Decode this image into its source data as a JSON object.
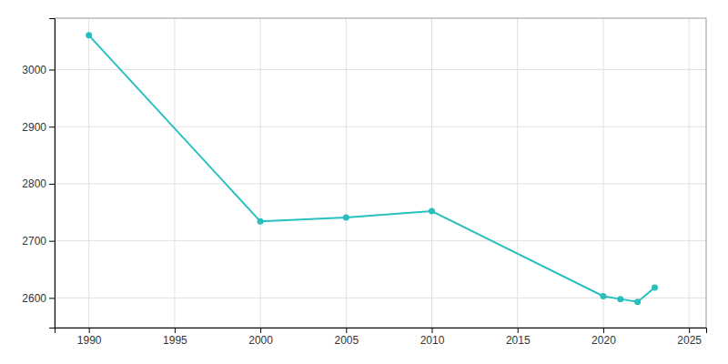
{
  "chart_data": {
    "type": "line",
    "x": [
      1990,
      2000,
      2005,
      2010,
      2020,
      2021,
      2022,
      2023
    ],
    "values": [
      3060,
      2734,
      2741,
      2752,
      2603,
      2598,
      2593,
      2618
    ],
    "color": "#2abfbf",
    "marker": "circle",
    "xlim": [
      1988,
      2026
    ],
    "ylim": [
      2548,
      3090
    ],
    "xticks": [
      1990,
      1995,
      2000,
      2005,
      2010,
      2015,
      2020,
      2025
    ],
    "yticks": [
      2600,
      2700,
      2800,
      2900,
      3000
    ],
    "grid": true
  }
}
